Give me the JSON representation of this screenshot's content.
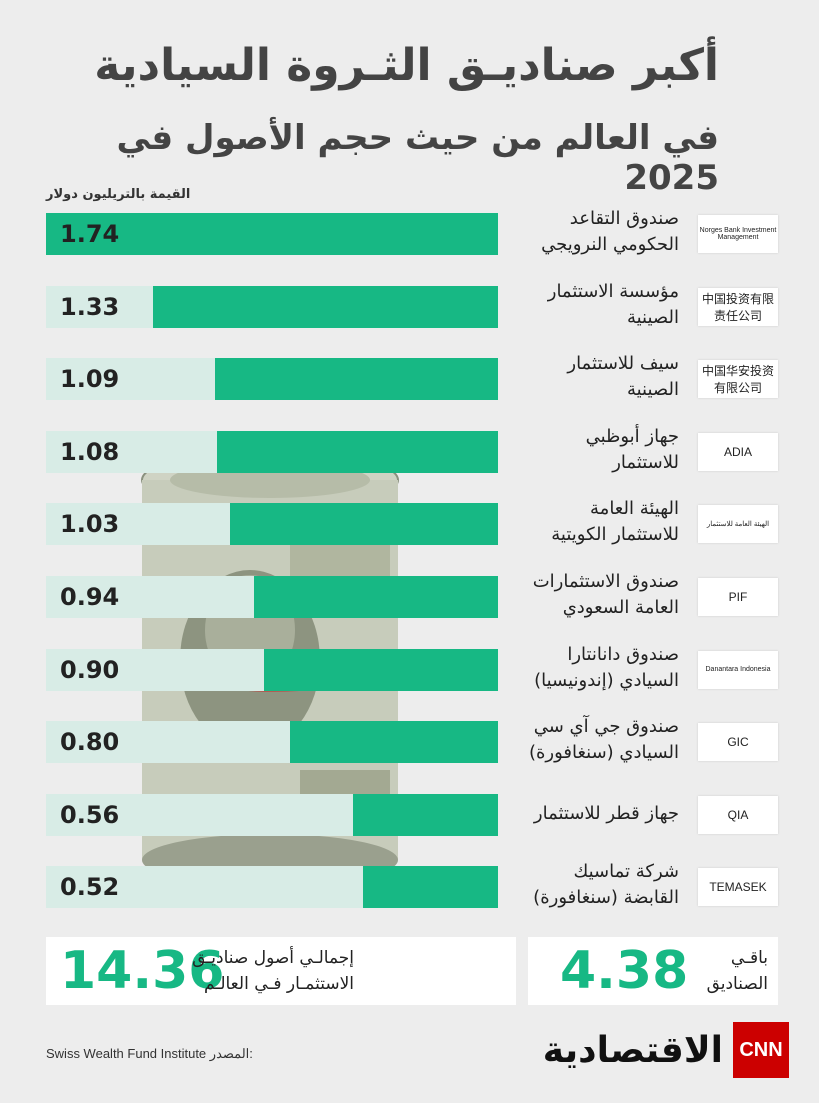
{
  "title_line1": "أكبر صناديـق الثـروة السيادية",
  "title_line2": "في العالم من حيث حجم الأصول في 2025",
  "unit_label": "القيمة بالتريليون دولار",
  "colors": {
    "bar": "#17b884",
    "track": "#d8ece6",
    "accent": "#17b884",
    "brand_red": "#cc0000"
  },
  "funds": [
    {
      "line1": "صندوق التقاعد",
      "line2": "الحكومي النرويجي",
      "value_label": "1.74",
      "logo_text": "Norges Bank Investment Management"
    },
    {
      "line1": "مؤسسة الاستثمار",
      "line2": "الصينية",
      "value_label": "1.33",
      "logo_text": "中国投资有限责任公司"
    },
    {
      "line1": "سيف للاستثمار",
      "line2": "الصينية",
      "value_label": "1.09",
      "logo_text": "中国华安投资有限公司"
    },
    {
      "line1": "جهاز أبوظبي",
      "line2": "للاستثمار",
      "value_label": "1.08",
      "logo_text": "ADIA"
    },
    {
      "line1": "الهيئة العامة",
      "line2": "للاستثمار الكويتية",
      "value_label": "1.03",
      "logo_text": "الهيئة العامة للاستثمار"
    },
    {
      "line1": "صندوق الاستثمارات",
      "line2": "العامة السعودي",
      "value_label": "0.94",
      "logo_text": "PIF"
    },
    {
      "line1": "صندوق دانانتارا",
      "line2": "السيادي (إندونيسيا)",
      "value_label": "0.90",
      "logo_text": "Danantara Indonesia"
    },
    {
      "line1": "صندوق جي آي سي",
      "line2": "السيادي (سنغافورة)",
      "value_label": "0.80",
      "logo_text": "GIC"
    },
    {
      "line1": "جهاز قطر للاستثمار",
      "line2": "",
      "value_label": "0.56",
      "logo_text": "QIA"
    },
    {
      "line1": "شركة تماسيك",
      "line2": "القابضة (سنغافورة)",
      "value_label": "0.52",
      "logo_text": "TEMASEK"
    }
  ],
  "chart_data": {
    "type": "bar",
    "orientation": "horizontal",
    "categories": [
      "صندوق التقاعد الحكومي النرويجي",
      "مؤسسة الاستثمار الصينية",
      "سيف للاستثمار الصينية",
      "جهاز أبوظبي للاستثمار",
      "الهيئة العامة للاستثمار الكويتية",
      "صندوق الاستثمارات العامة السعودي",
      "صندوق دانانتارا السيادي (إندونيسيا)",
      "صندوق جي آي سي السيادي (سنغافورة)",
      "جهاز قطر للاستثمار",
      "شركة تماسيك القابضة (سنغافورة)"
    ],
    "values": [
      1.74,
      1.33,
      1.09,
      1.08,
      1.03,
      0.94,
      0.9,
      0.8,
      0.56,
      0.52
    ],
    "xlim": [
      0,
      1.74
    ]
  },
  "totals": {
    "world_value": "14.36",
    "world_line1": "إجمالـي أصول صناديـق",
    "world_line2": "الاستثمـار فـي العالـم",
    "rest_value": "4.38",
    "rest_line1": "باقـي",
    "rest_line2": "الصناديق"
  },
  "source": {
    "label": "المصدر:",
    "value": "Swiss Wealth Fund Institute"
  },
  "brand": {
    "arabic": "الاقتصادية",
    "cnn": "CNN"
  }
}
